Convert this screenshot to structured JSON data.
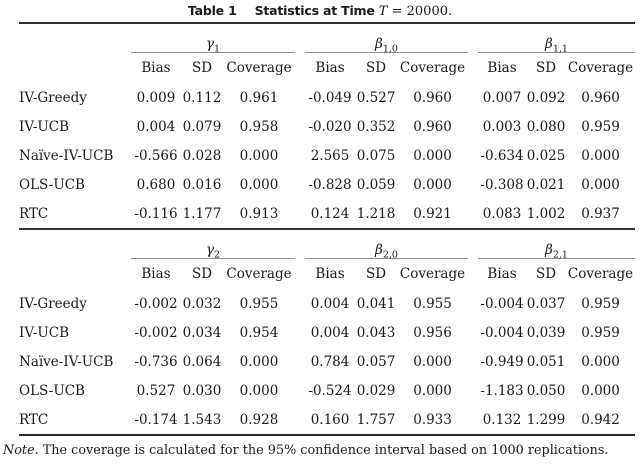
{
  "title": {
    "table_label": "Table 1",
    "caption": "Statistics at Time",
    "math_var": "T",
    "math_rest": " = 20000."
  },
  "column_headers": [
    "Bias",
    "SD",
    "Coverage"
  ],
  "panels": [
    {
      "groups": [
        {
          "symbol": "γ",
          "subscript": "1"
        },
        {
          "symbol": "β",
          "subscript": "1,0"
        },
        {
          "symbol": "β",
          "subscript": "1,1"
        }
      ],
      "rows": [
        {
          "label": "IV-Greedy",
          "values": [
            "0.009",
            "0.112",
            "0.961",
            "-0.049",
            "0.527",
            "0.960",
            "0.007",
            "0.092",
            "0.960"
          ]
        },
        {
          "label": "IV-UCB",
          "values": [
            "0.004",
            "0.079",
            "0.958",
            "-0.020",
            "0.352",
            "0.960",
            "0.003",
            "0.080",
            "0.959"
          ]
        },
        {
          "label": "Naïve-IV-UCB",
          "values": [
            "-0.566",
            "0.028",
            "0.000",
            "2.565",
            "0.075",
            "0.000",
            "-0.634",
            "0.025",
            "0.000"
          ]
        },
        {
          "label": "OLS-UCB",
          "values": [
            "0.680",
            "0.016",
            "0.000",
            "-0.828",
            "0.059",
            "0.000",
            "-0.308",
            "0.021",
            "0.000"
          ]
        },
        {
          "label": "RTC",
          "values": [
            "-0.116",
            "1.177",
            "0.913",
            "0.124",
            "1.218",
            "0.921",
            "0.083",
            "1.002",
            "0.937"
          ]
        }
      ]
    },
    {
      "groups": [
        {
          "symbol": "γ",
          "subscript": "2"
        },
        {
          "symbol": "β",
          "subscript": "2,0"
        },
        {
          "symbol": "β",
          "subscript": "2,1"
        }
      ],
      "rows": [
        {
          "label": "IV-Greedy",
          "values": [
            "-0.002",
            "0.032",
            "0.955",
            "0.004",
            "0.041",
            "0.955",
            "-0.004",
            "0.037",
            "0.959"
          ]
        },
        {
          "label": "IV-UCB",
          "values": [
            "-0.002",
            "0.034",
            "0.954",
            "0.004",
            "0.043",
            "0.956",
            "-0.004",
            "0.039",
            "0.959"
          ]
        },
        {
          "label": "Naïve-IV-UCB",
          "values": [
            "-0.736",
            "0.064",
            "0.000",
            "0.784",
            "0.057",
            "0.000",
            "-0.949",
            "0.051",
            "0.000"
          ]
        },
        {
          "label": "OLS-UCB",
          "values": [
            "0.527",
            "0.030",
            "0.000",
            "-0.524",
            "0.029",
            "0.000",
            "-1.183",
            "0.050",
            "0.000"
          ]
        },
        {
          "label": "RTC",
          "values": [
            "-0.174",
            "1.543",
            "0.928",
            "0.160",
            "1.757",
            "0.933",
            "0.132",
            "1.299",
            "0.942"
          ]
        }
      ]
    }
  ],
  "note": {
    "prefix": "Note.",
    "text": " The coverage is calculated for the 95% confidence interval based on 1000 replications."
  },
  "colors": {
    "text": "#1a1a1a",
    "rule_heavy": "#2b2b2b",
    "rule_light": "#8f8f8f",
    "background": "#ffffff"
  }
}
